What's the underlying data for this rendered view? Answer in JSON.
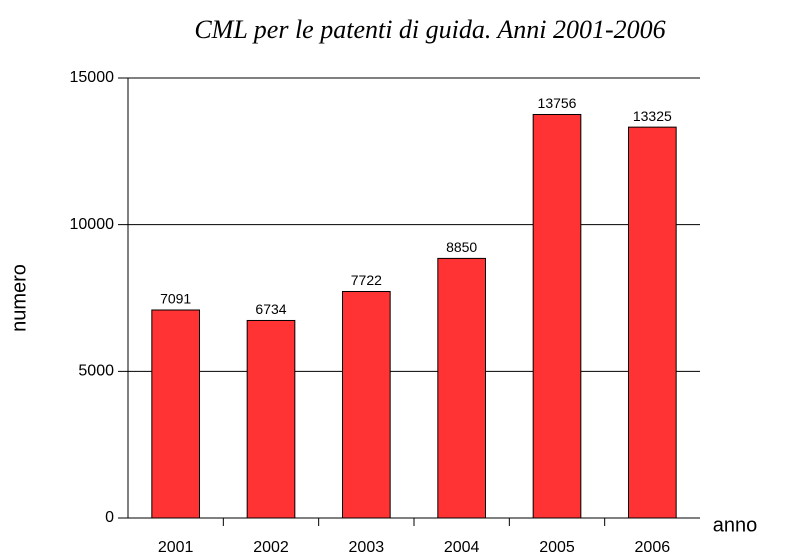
{
  "chart_data": {
    "type": "bar",
    "title": "CML per le patenti di guida. Anni 2001-2006",
    "x_label": "anno",
    "y_label": "numero",
    "categories": [
      "2001",
      "2002",
      "2003",
      "2004",
      "2005",
      "2006"
    ],
    "values": [
      7091,
      6734,
      7722,
      8850,
      13756,
      13325
    ],
    "color": "#ff3333",
    "ylim": [
      0,
      15000
    ],
    "yticks": [
      0,
      5000,
      10000,
      15000
    ],
    "grid": true
  }
}
